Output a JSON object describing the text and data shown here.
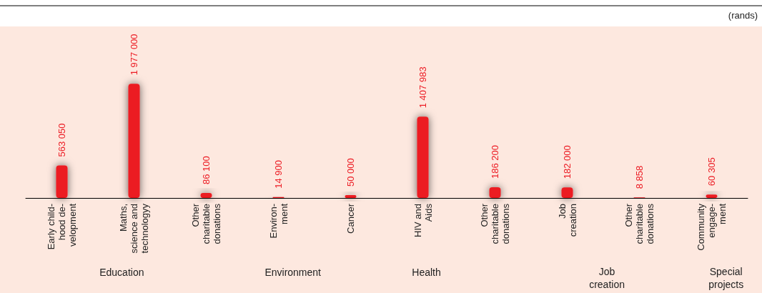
{
  "chart_data": {
    "type": "bar",
    "categories": [
      "Early child-\nhood de-\nvelopment",
      "Maths,\nscience and\ntechnologyy",
      "Other\ncharitable\ndonations",
      "Environ-\nment",
      "Cancer",
      "HIV and\nAids",
      "Other\ncharitable\ndonations",
      "Job\ncreation",
      "Other\ncharitable\ndonations",
      "Community\nengage-\nment"
    ],
    "values": [
      563050,
      1977000,
      86100,
      14900,
      50000,
      1407983,
      186200,
      182000,
      8858,
      60305
    ],
    "color": "#ec1c24",
    "data_labels": true,
    "grid": false,
    "annotations": [
      "(rands)",
      "Education",
      "Environment",
      "Health",
      "Job\ncreation",
      "Special\nprojects"
    ]
  }
}
